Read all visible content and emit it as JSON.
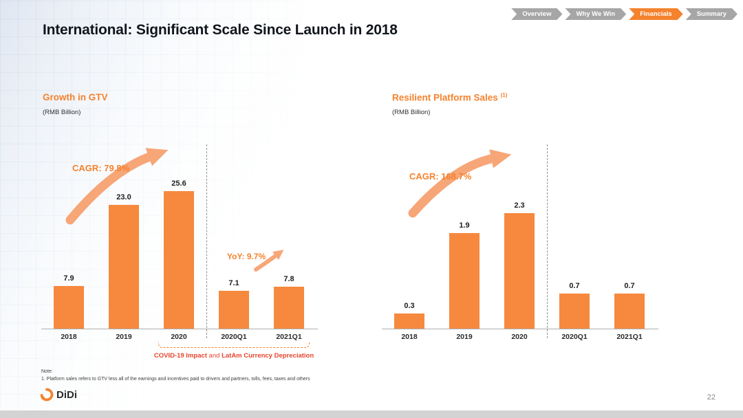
{
  "nav": {
    "tabs": [
      {
        "label": "Overview",
        "active": false
      },
      {
        "label": "Why We Win",
        "active": false
      },
      {
        "label": "Financials",
        "active": true
      },
      {
        "label": "Summary",
        "active": false
      }
    ]
  },
  "slide": {
    "title": "International: Significant Scale Since Launch in 2018",
    "note_label": "Note:",
    "note_text": "1.  Platform sales refers to GTV less all of the earnings and incentives paid to drivers and partners, tolls, fees, taxes and others",
    "brand": "DiDi",
    "page_number": "22"
  },
  "colors": {
    "accent": "#F5822D",
    "bar": "#F6893E",
    "arrow": "#F7A678",
    "nav_inactive": "#A6A6A6",
    "note_red": "#E8432D"
  },
  "chart_data": [
    {
      "type": "bar",
      "title": "Growth in GTV",
      "title_superscript": "",
      "unit_label": "(RMB Billion)",
      "categories": [
        "2018",
        "2019",
        "2020",
        "2020Q1",
        "2021Q1"
      ],
      "values": [
        7.9,
        23.0,
        25.6,
        7.1,
        7.8
      ],
      "ylim": [
        0,
        28
      ],
      "grid": false,
      "legend": false,
      "divider_after_index": 2,
      "annotations": {
        "cagr": "CAGR: 79.8%",
        "yoy": "YoY: 9.7%",
        "bracket_bold1": "COVID-19 Impact",
        "bracket_mid": " and ",
        "bracket_bold2": "LatAm Currency Depreciation"
      }
    },
    {
      "type": "bar",
      "title": "Resilient Platform Sales",
      "title_superscript": "(1)",
      "unit_label": "(RMB Billion)",
      "categories": [
        "2018",
        "2019",
        "2020",
        "2020Q1",
        "2021Q1"
      ],
      "values": [
        0.3,
        1.9,
        2.3,
        0.7,
        0.7
      ],
      "ylim": [
        0,
        2.5
      ],
      "grid": false,
      "legend": false,
      "divider_after_index": 2,
      "annotations": {
        "cagr": "CAGR: 168.7%"
      }
    }
  ]
}
